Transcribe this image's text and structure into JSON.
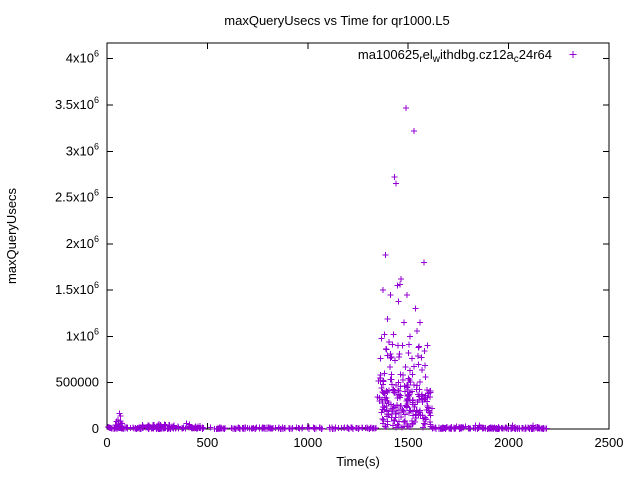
{
  "chart_data": {
    "type": "scatter",
    "title": "maxQueryUsecs vs Time for qr1000.L5",
    "xlabel": "Time(s)",
    "ylabel": "maxQueryUsecs",
    "xlim": [
      0,
      2500
    ],
    "ylim": [
      0,
      4170000
    ],
    "grid": false,
    "legend_position": "top-right-inside",
    "marker": {
      "shape": "plus",
      "color": "#9400d3",
      "size": 3
    },
    "x_ticks": [
      {
        "v": 0,
        "label": "0"
      },
      {
        "v": 500,
        "label": "500"
      },
      {
        "v": 1000,
        "label": "1000"
      },
      {
        "v": 1500,
        "label": "1500"
      },
      {
        "v": 2000,
        "label": "2000"
      },
      {
        "v": 2500,
        "label": "2500"
      }
    ],
    "y_ticks": [
      {
        "v": 0,
        "m": "0",
        "e": ""
      },
      {
        "v": 500000,
        "m": "500000",
        "e": ""
      },
      {
        "v": 1000000,
        "m": "1x10",
        "e": "6"
      },
      {
        "v": 1500000,
        "m": "1.5x10",
        "e": "6"
      },
      {
        "v": 2000000,
        "m": "2x10",
        "e": "6"
      },
      {
        "v": 2500000,
        "m": "2.5x10",
        "e": "6"
      },
      {
        "v": 3000000,
        "m": "3x10",
        "e": "6"
      },
      {
        "v": 3500000,
        "m": "3.5x10",
        "e": "6"
      },
      {
        "v": 4000000,
        "m": "4x10",
        "e": "6"
      }
    ],
    "legend": {
      "series_name": "ma100625_rel_withdbg.cz12a_c24r64",
      "segments": [
        {
          "t": "ma100625",
          "s": false
        },
        {
          "t": "r",
          "s": true
        },
        {
          "t": "el",
          "s": false
        },
        {
          "t": "w",
          "s": true
        },
        {
          "t": "ithdbg.cz12a",
          "s": false
        },
        {
          "t": "c",
          "s": true
        },
        {
          "t": "24r64",
          "s": false
        }
      ]
    },
    "series": [
      {
        "name": "ma100625_rel_withdbg.cz12a_c24r64",
        "outliers": [
          [
            42,
            45000
          ],
          [
            55,
            95000
          ],
          [
            62,
            170000
          ],
          [
            68,
            140000
          ],
          [
            75,
            60000
          ],
          [
            205,
            40000
          ],
          [
            260,
            52000
          ],
          [
            310,
            44000
          ],
          [
            395,
            58000
          ],
          [
            410,
            47000
          ],
          [
            1352,
            520000
          ],
          [
            1358,
            300000
          ],
          [
            1362,
            760000
          ],
          [
            1368,
            980000
          ],
          [
            1375,
            1500000
          ],
          [
            1381,
            1020000
          ],
          [
            1388,
            1880000
          ],
          [
            1392,
            860000
          ],
          [
            1398,
            1190000
          ],
          [
            1404,
            940000
          ],
          [
            1412,
            1450000
          ],
          [
            1418,
            780000
          ],
          [
            1426,
            1020000
          ],
          [
            1433,
            2720000
          ],
          [
            1439,
            2650000
          ],
          [
            1446,
            1550000
          ],
          [
            1452,
            1380000
          ],
          [
            1458,
            1560000
          ],
          [
            1465,
            1620000
          ],
          [
            1472,
            900000
          ],
          [
            1480,
            1150000
          ],
          [
            1488,
            3470000
          ],
          [
            1495,
            1450000
          ],
          [
            1502,
            820000
          ],
          [
            1510,
            1000000
          ],
          [
            1518,
            760000
          ],
          [
            1528,
            3220000
          ],
          [
            1536,
            1300000
          ],
          [
            1545,
            1060000
          ],
          [
            1552,
            880000
          ],
          [
            1560,
            1150000
          ],
          [
            1568,
            640000
          ],
          [
            1578,
            1800000
          ],
          [
            1586,
            560000
          ],
          [
            1595,
            900000
          ]
        ],
        "clusters": [
          {
            "seed": 11,
            "count": 45,
            "x": [
              5,
              120
            ],
            "y": [
              1000,
              22000
            ],
            "pow": 1
          },
          {
            "seed": 12,
            "count": 8,
            "x": [
              45,
              85
            ],
            "y": [
              25000,
              90000
            ],
            "pow": 1.5
          },
          {
            "seed": 13,
            "count": 200,
            "x": [
              120,
              1345
            ],
            "y": [
              1000,
              18000
            ],
            "pow": 1.3
          },
          {
            "seed": 14,
            "count": 35,
            "x": [
              170,
              320
            ],
            "y": [
              8000,
              48000
            ],
            "pow": 1.4
          },
          {
            "seed": 15,
            "count": 28,
            "x": [
              320,
              470
            ],
            "y": [
              6000,
              40000
            ],
            "pow": 1.4
          },
          {
            "seed": 16,
            "count": 130,
            "x": [
              1345,
              1620
            ],
            "y": [
              15000,
              430000
            ],
            "pow": 1.2
          },
          {
            "seed": 17,
            "count": 70,
            "x": [
              1355,
              1605
            ],
            "y": [
              180000,
              620000
            ],
            "pow": 1
          },
          {
            "seed": 18,
            "count": 20,
            "x": [
              1365,
              1595
            ],
            "y": [
              600000,
              950000
            ],
            "pow": 1
          },
          {
            "seed": 19,
            "count": 150,
            "x": [
              1620,
              2190
            ],
            "y": [
              1000,
              16000
            ],
            "pow": 1.3
          },
          {
            "seed": 20,
            "count": 18,
            "x": [
              1640,
              2160
            ],
            "y": [
              16000,
              40000
            ],
            "pow": 1.2
          }
        ]
      }
    ]
  }
}
